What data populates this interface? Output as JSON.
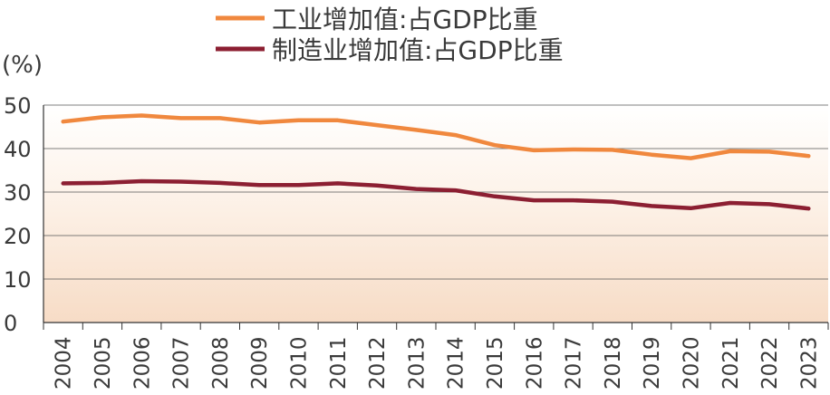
{
  "chart_data": {
    "type": "line",
    "title": "",
    "xlabel": "",
    "ylabel": "(%)",
    "ylim": [
      0,
      50
    ],
    "yticks": [
      0,
      10,
      20,
      30,
      40,
      50
    ],
    "grid": true,
    "legend_position": "top",
    "x": [
      "2004",
      "2005",
      "2006",
      "2007",
      "2008",
      "2009",
      "2010",
      "2011",
      "2012",
      "2013",
      "2014",
      "2015",
      "2016",
      "2017",
      "2018",
      "2019",
      "2020",
      "2021",
      "2022",
      "2023"
    ],
    "series": [
      {
        "name": "工业增加值:占GDP比重",
        "color": "#f0883e",
        "values": [
          46.2,
          47.2,
          47.6,
          47.0,
          47.0,
          46.0,
          46.5,
          46.5,
          45.4,
          44.3,
          43.1,
          40.8,
          39.6,
          39.8,
          39.7,
          38.6,
          37.8,
          39.4,
          39.3,
          38.3
        ]
      },
      {
        "name": "制造业增加值:占GDP比重",
        "color": "#8c1f32",
        "values": [
          32.0,
          32.1,
          32.5,
          32.4,
          32.1,
          31.6,
          31.6,
          32.0,
          31.5,
          30.7,
          30.4,
          29.0,
          28.1,
          28.1,
          27.8,
          26.8,
          26.3,
          27.5,
          27.2,
          26.2
        ]
      }
    ]
  }
}
